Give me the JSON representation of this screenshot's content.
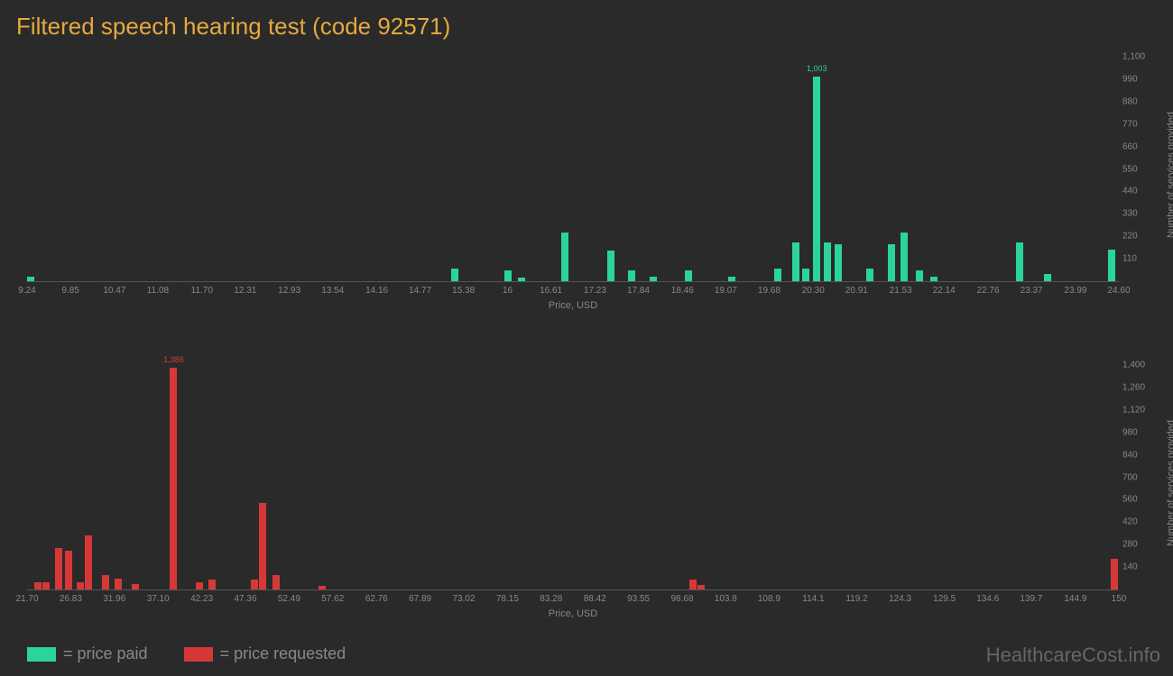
{
  "title": "Filtered speech hearing test (code 92571)",
  "colors": {
    "background": "#2a2a2a",
    "title": "#e6a93d",
    "green": "#2bd49c",
    "red": "#d63838",
    "axis_text": "#888888",
    "axis_line": "#555555",
    "watermark": "#666666"
  },
  "chart1": {
    "type": "bar",
    "bar_color": "#2bd49c",
    "xlabel": "Price, USD",
    "ylabel": "Number of services provided",
    "xlim": [
      9.24,
      24.6
    ],
    "ylim": [
      0,
      1100
    ],
    "xticks": [
      "9.24",
      "9.85",
      "10.47",
      "11.08",
      "11.70",
      "12.31",
      "12.93",
      "13.54",
      "14.16",
      "14.77",
      "15.38",
      "16",
      "16.61",
      "17.23",
      "17.84",
      "18.46",
      "19.07",
      "19.68",
      "20.30",
      "20.91",
      "21.53",
      "22.14",
      "22.76",
      "23.37",
      "23.99",
      "24.60"
    ],
    "yticks": [
      110,
      220,
      330,
      440,
      550,
      660,
      770,
      880,
      990,
      1100
    ],
    "bars": [
      {
        "x": 9.24,
        "y": 20
      },
      {
        "x": 15.2,
        "y": 60
      },
      {
        "x": 15.95,
        "y": 55
      },
      {
        "x": 16.15,
        "y": 18
      },
      {
        "x": 16.75,
        "y": 240
      },
      {
        "x": 17.4,
        "y": 150
      },
      {
        "x": 17.7,
        "y": 55
      },
      {
        "x": 18.0,
        "y": 20
      },
      {
        "x": 18.5,
        "y": 55
      },
      {
        "x": 19.1,
        "y": 20
      },
      {
        "x": 19.75,
        "y": 60
      },
      {
        "x": 20.0,
        "y": 190
      },
      {
        "x": 20.15,
        "y": 60
      },
      {
        "x": 20.3,
        "y": 1003,
        "label": "1,003"
      },
      {
        "x": 20.45,
        "y": 190
      },
      {
        "x": 20.6,
        "y": 180
      },
      {
        "x": 21.05,
        "y": 60
      },
      {
        "x": 21.35,
        "y": 180
      },
      {
        "x": 21.53,
        "y": 240
      },
      {
        "x": 21.75,
        "y": 55
      },
      {
        "x": 21.95,
        "y": 20
      },
      {
        "x": 23.15,
        "y": 190
      },
      {
        "x": 23.55,
        "y": 35
      },
      {
        "x": 24.45,
        "y": 155
      }
    ]
  },
  "chart2": {
    "type": "bar",
    "bar_color": "#d63838",
    "xlabel": "Price, USD",
    "ylabel": "Number of services provided",
    "xlim": [
      21.7,
      150
    ],
    "ylim": [
      0,
      1400
    ],
    "xticks": [
      "21.70",
      "26.83",
      "31.96",
      "37.10",
      "42.23",
      "47.36",
      "52.49",
      "57.62",
      "62.76",
      "67.89",
      "73.02",
      "78.15",
      "83.28",
      "88.42",
      "93.55",
      "98.68",
      "103.8",
      "108.9",
      "114.1",
      "119.2",
      "124.3",
      "129.5",
      "134.6",
      "139.7",
      "144.9",
      "150"
    ],
    "yticks": [
      140,
      280,
      420,
      560,
      700,
      840,
      980,
      1120,
      1260,
      1400
    ],
    "bars": [
      {
        "x": 22.5,
        "y": 45
      },
      {
        "x": 23.5,
        "y": 45
      },
      {
        "x": 25.0,
        "y": 260
      },
      {
        "x": 26.2,
        "y": 240
      },
      {
        "x": 27.5,
        "y": 45
      },
      {
        "x": 28.5,
        "y": 340
      },
      {
        "x": 30.5,
        "y": 90
      },
      {
        "x": 32.0,
        "y": 65
      },
      {
        "x": 34.0,
        "y": 35
      },
      {
        "x": 38.5,
        "y": 1386,
        "label": "1,386"
      },
      {
        "x": 41.5,
        "y": 45
      },
      {
        "x": 43.0,
        "y": 60
      },
      {
        "x": 48.0,
        "y": 60
      },
      {
        "x": 49.0,
        "y": 540
      },
      {
        "x": 50.5,
        "y": 90
      },
      {
        "x": 56.0,
        "y": 25
      },
      {
        "x": 99.5,
        "y": 60
      },
      {
        "x": 100.5,
        "y": 30
      },
      {
        "x": 149.0,
        "y": 190
      }
    ]
  },
  "legend": {
    "items": [
      {
        "color": "#2bd49c",
        "label": "= price paid"
      },
      {
        "color": "#d63838",
        "label": "= price requested"
      }
    ]
  },
  "watermark": "HealthcareCost.info"
}
